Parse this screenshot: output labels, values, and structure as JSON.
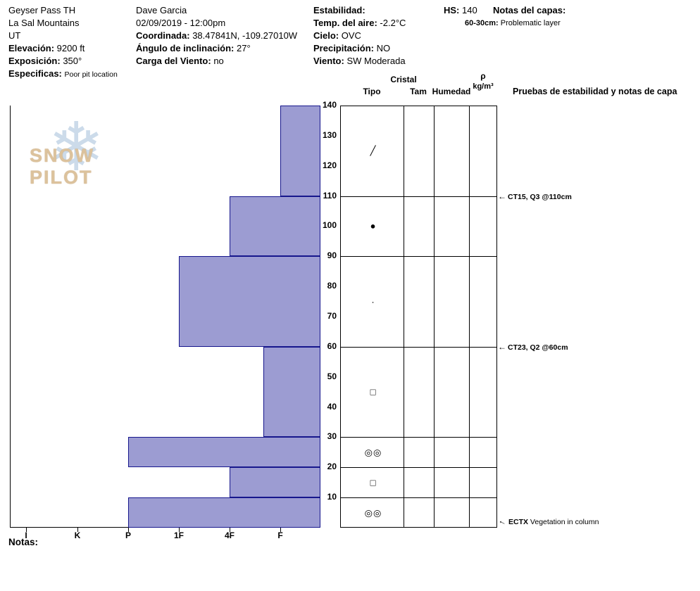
{
  "header": {
    "site": "Geyser Pass TH",
    "range": "La Sal Mountains",
    "state": "UT",
    "elevation_label": "Elevación:",
    "elevation": "9200 ft",
    "aspect_label": "Exposición:",
    "aspect": "350°",
    "specifics_label": "Especificas:",
    "specifics": "Poor pit location",
    "observer": "Dave Garcia",
    "datetime": "02/09/2019 - 12:00pm",
    "coord_label": "Coordinada:",
    "coord": "38.47841N, -109.27010W",
    "slope_label": "Ángulo de inclinación:",
    "slope": "27°",
    "windload_label": "Carga del Viento:",
    "windload": "no",
    "stability_label": "Estabilidad:",
    "airtemp_label": "Temp. del aire:",
    "airtemp": "-2.2°C",
    "sky_label": "Cielo:",
    "sky": "OVC",
    "precip_label": "Precipitación:",
    "precip": "NO",
    "wind_label": "Viento:",
    "wind": "SW Moderada",
    "hs_label": "HS:",
    "hs": "140",
    "layer_notes_label": "Notas del capas:",
    "layer_note_depth": "60-30cm:",
    "layer_note_text": "Problematic layer"
  },
  "footer": {
    "notas_label": "Notas:"
  },
  "logo": {
    "text": "SNOW PILOT"
  },
  "icons": {
    "arrow_left": "←",
    "snowflake": "❄"
  },
  "chart_data": {
    "type": "bar",
    "orientation": "horizontal",
    "title": "Snow pit hardness profile",
    "depth_unit": "cm",
    "depth_range": [
      0,
      140
    ],
    "depth_ticks": [
      140,
      130,
      120,
      110,
      100,
      90,
      80,
      70,
      60,
      50,
      40,
      30,
      20,
      10
    ],
    "hardness_categories": [
      "I",
      "K",
      "P",
      "1F",
      "4F",
      "F"
    ],
    "layers": [
      {
        "top_cm": 140,
        "bottom_cm": 110,
        "hardness": "F"
      },
      {
        "top_cm": 110,
        "bottom_cm": 90,
        "hardness": "4F"
      },
      {
        "top_cm": 90,
        "bottom_cm": 60,
        "hardness": "1F"
      },
      {
        "top_cm": 60,
        "bottom_cm": 30,
        "hardness": "F+"
      },
      {
        "top_cm": 30,
        "bottom_cm": 20,
        "hardness": "P"
      },
      {
        "top_cm": 20,
        "bottom_cm": 10,
        "hardness": "4F"
      },
      {
        "top_cm": 10,
        "bottom_cm": 0,
        "hardness": "P"
      }
    ],
    "layer_boundaries_cm": [
      110,
      90,
      60,
      30,
      20,
      10
    ],
    "crystals": [
      {
        "depth_cm": 125,
        "symbol": "╱",
        "name": "slash"
      },
      {
        "depth_cm": 100,
        "symbol": "●",
        "name": "filled-circle"
      },
      {
        "depth_cm": 75,
        "symbol": "·",
        "name": "dot"
      },
      {
        "depth_cm": 45,
        "symbol": "□",
        "name": "open-square"
      },
      {
        "depth_cm": 25,
        "symbol": "◎◎",
        "name": "double-circle-pair"
      },
      {
        "depth_cm": 15,
        "symbol": "□",
        "name": "open-square"
      },
      {
        "depth_cm": 5,
        "symbol": "◎◎",
        "name": "double-circle-pair"
      }
    ],
    "stability_tests": [
      {
        "depth_cm": 110,
        "text": "CT15, Q3 @110cm"
      },
      {
        "depth_cm": 60,
        "text": "CT23, Q2 @60cm"
      }
    ],
    "bottom_note": {
      "bold": "ECTX",
      "text": " Vegetation in column"
    },
    "columns": {
      "group": "Cristal",
      "tipo": "Tipo",
      "tam": "Tam",
      "humedad": "Humedad",
      "rho": "ρ",
      "rho_unit": "kg/m³"
    },
    "tests_header": "Pruebas de estabilidad y notas de capa",
    "colors": {
      "bar_fill": "#9c9cd2",
      "bar_border": "#16168c"
    }
  }
}
